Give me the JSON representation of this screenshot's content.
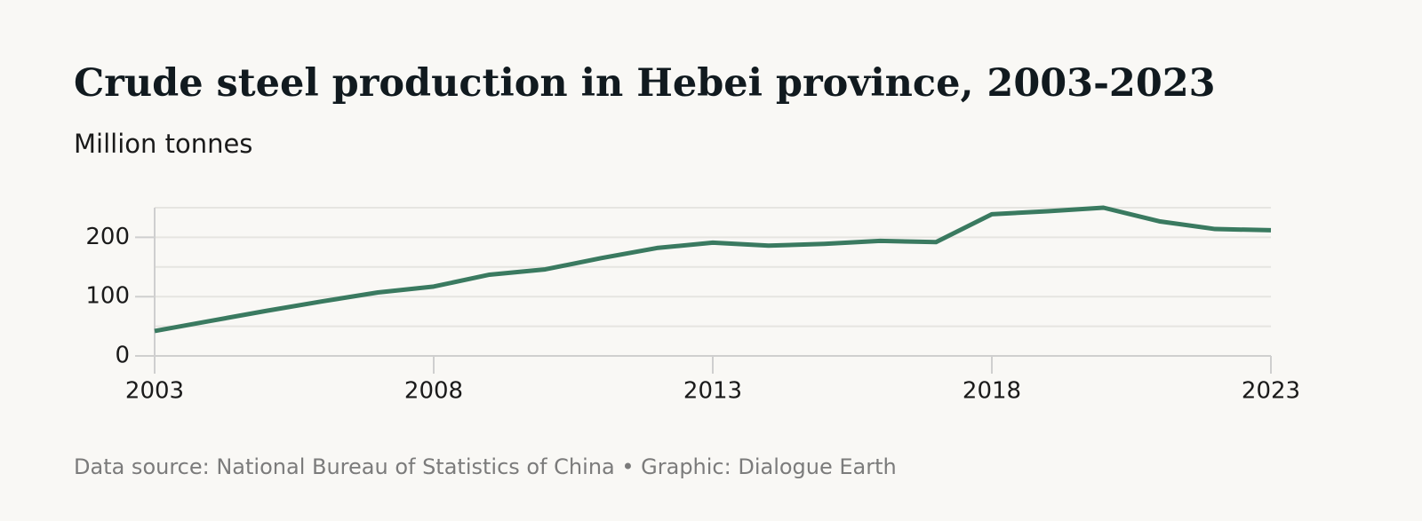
{
  "chart_data": {
    "type": "line",
    "title": "Crude steel production in Hebei province, 2003-2023",
    "subtitle": "Million tonnes",
    "source": "Data source: National Bureau of Statistics of China • Graphic: Dialogue Earth",
    "x": [
      2003,
      2004,
      2005,
      2006,
      2007,
      2008,
      2009,
      2010,
      2011,
      2012,
      2013,
      2014,
      2015,
      2016,
      2017,
      2018,
      2019,
      2020,
      2021,
      2022,
      2023
    ],
    "series": [
      {
        "color": "#3a7a60",
        "values": [
          42,
          59,
          76,
          92,
          107,
          117,
          137,
          146,
          165,
          182,
          191,
          186,
          189,
          194,
          192,
          239,
          244,
          250,
          227,
          214,
          212
        ]
      }
    ],
    "xlim": [
      2003,
      2023
    ],
    "xticks": [
      2003,
      2008,
      2013,
      2018,
      2023
    ],
    "ylim": [
      0,
      250
    ],
    "yticks": [
      0,
      100,
      200
    ],
    "ygrid": [
      50,
      100,
      150,
      200,
      250
    ],
    "grid": true
  }
}
